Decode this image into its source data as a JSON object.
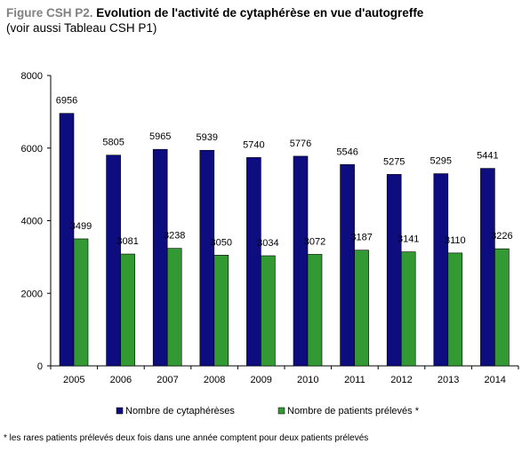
{
  "figure": {
    "label": "Figure CSH P2.",
    "title": "Evolution de l'activité de cytaphérèse en vue d'autogreffe",
    "subtitle": "(voir aussi Tableau CSH P1)"
  },
  "chart_data": {
    "type": "bar",
    "categories": [
      "2005",
      "2006",
      "2007",
      "2008",
      "2009",
      "2010",
      "2011",
      "2012",
      "2013",
      "2014"
    ],
    "series": [
      {
        "name": "Nombre de cytaphérèses",
        "color": "#0d0d80",
        "values": [
          6956,
          5805,
          5965,
          5939,
          5740,
          5776,
          5546,
          5275,
          5295,
          5441
        ]
      },
      {
        "name": "Nombre de patients prélevés *",
        "color": "#339933",
        "values": [
          3499,
          3081,
          3238,
          3050,
          3034,
          3072,
          3187,
          3141,
          3110,
          3226
        ]
      }
    ],
    "ylim": [
      0,
      8000
    ],
    "yticks": [
      0,
      2000,
      4000,
      6000,
      8000
    ],
    "grid": false,
    "legend_position": "bottom"
  },
  "footnote": "* les rares patients prélevés deux fois dans une année comptent pour deux patients prélevés"
}
